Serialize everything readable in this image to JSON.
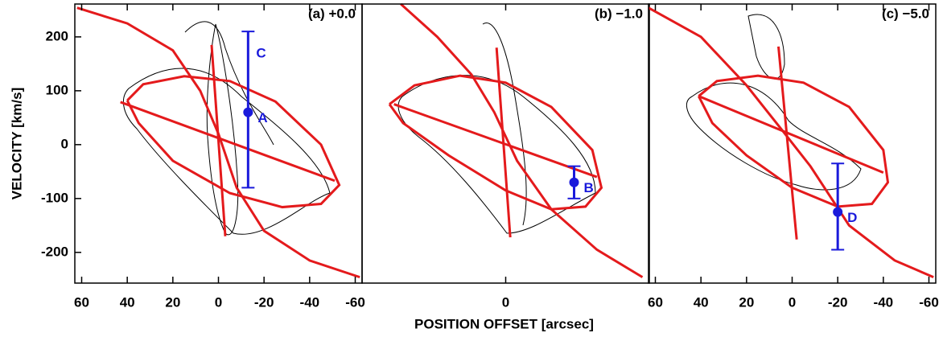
{
  "chart_data": [
    {
      "type": "line",
      "title": "(a) +0.0",
      "ylabel": "VELOCITY [km/s]",
      "xlim": [
        63,
        -63
      ],
      "ylim": [
        -257,
        261
      ],
      "xticks": [
        60,
        40,
        20,
        0,
        -20,
        -40,
        -60
      ],
      "yticks": [
        200,
        100,
        0,
        -100,
        -200
      ],
      "series": [
        {
          "color": "#e41a1c",
          "x": [
            40,
            33,
            15,
            -5,
            -25,
            -45,
            -53,
            -45,
            -28,
            -5,
            20,
            35,
            40
          ],
          "y": [
            82,
            112,
            127,
            118,
            80,
            0,
            -75,
            -110,
            -116,
            -90,
            -30,
            40,
            82
          ]
        },
        {
          "color": "#e41a1c",
          "x": [
            62,
            40,
            20,
            8,
            0,
            -8,
            -20,
            -40,
            -62
          ],
          "y": [
            254,
            225,
            175,
            100,
            20,
            -80,
            -160,
            -215,
            -246
          ]
        },
        {
          "color": "#e41a1c",
          "x": [
            43,
            -51
          ],
          "y": [
            79,
            -67
          ]
        },
        {
          "color": "#e41a1c",
          "x": [
            3,
            -3
          ],
          "y": [
            185,
            -170
          ]
        }
      ],
      "errorbars": [
        {
          "color": "#1a1adb",
          "x": -13,
          "y": 60,
          "ymin": -80,
          "ymax": 210,
          "labels": [
            "C",
            "A"
          ]
        }
      ]
    },
    {
      "type": "line",
      "title": "(b) −1.0",
      "xlabel": "POSITION  OFFSET  [arcsec]",
      "xlim": [
        63,
        -63
      ],
      "ylim": [
        -257,
        261
      ],
      "xticks": [
        0
      ],
      "series": [
        {
          "color": "#e41a1c",
          "x": [
            51,
            40,
            20,
            0,
            -20,
            -38,
            -42,
            -35,
            -20,
            0,
            25,
            45,
            51
          ],
          "y": [
            75,
            110,
            128,
            115,
            70,
            -10,
            -80,
            -115,
            -120,
            -85,
            -20,
            40,
            75
          ]
        },
        {
          "color": "#e41a1c",
          "x": [
            46,
            30,
            15,
            5,
            -5,
            -20,
            -40,
            -60
          ],
          "y": [
            261,
            200,
            130,
            60,
            -30,
            -120,
            -195,
            -246
          ]
        },
        {
          "color": "#e41a1c",
          "x": [
            49,
            -40
          ],
          "y": [
            75,
            -60
          ]
        },
        {
          "color": "#e41a1c",
          "x": [
            4,
            -2
          ],
          "y": [
            180,
            -172
          ]
        }
      ],
      "errorbars": [
        {
          "color": "#1a1adb",
          "x": -30,
          "y": -70,
          "ymin": -100,
          "ymax": -40,
          "labels": [
            "B"
          ]
        }
      ]
    },
    {
      "type": "line",
      "title": "(c) −5.0",
      "xlim": [
        63,
        -63
      ],
      "ylim": [
        -257,
        261
      ],
      "xticks": [
        60,
        40,
        20,
        0,
        -20,
        -40,
        -60
      ],
      "series": [
        {
          "color": "#e41a1c",
          "x": [
            41,
            33,
            15,
            -5,
            -25,
            -40,
            -42,
            -35,
            -20,
            0,
            20,
            35,
            41
          ],
          "y": [
            90,
            118,
            128,
            115,
            70,
            -10,
            -70,
            -110,
            -115,
            -80,
            -20,
            40,
            90
          ]
        },
        {
          "color": "#e41a1c",
          "x": [
            63,
            40,
            20,
            5,
            -8,
            -25,
            -45,
            -62
          ],
          "y": [
            254,
            200,
            110,
            30,
            -40,
            -150,
            -215,
            -246
          ]
        },
        {
          "color": "#e41a1c",
          "x": [
            41,
            -40
          ],
          "y": [
            90,
            -52
          ]
        },
        {
          "color": "#e41a1c",
          "x": [
            6,
            -2
          ],
          "y": [
            182,
            -176
          ]
        }
      ],
      "errorbars": [
        {
          "color": "#1a1adb",
          "x": -20,
          "y": -125,
          "ymin": -195,
          "ymax": -35,
          "labels": [
            "D"
          ]
        }
      ]
    }
  ]
}
